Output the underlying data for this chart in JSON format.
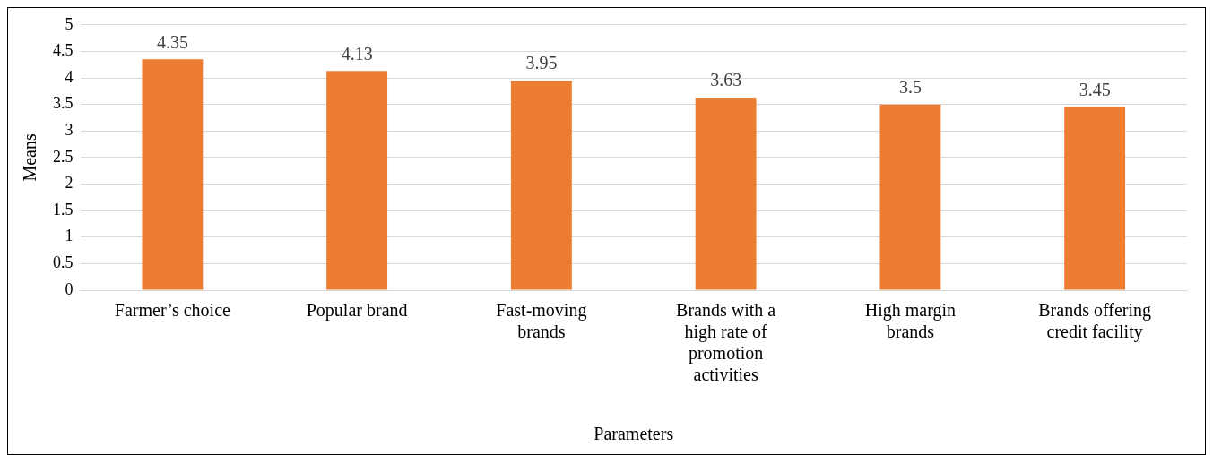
{
  "chart_data": {
    "type": "bar",
    "xlabel": "Parameters",
    "ylabel": "Means",
    "categories": [
      "Farmer’s choice",
      "Popular brand",
      "Fast-moving brands",
      "Brands with a high rate of promotion activities",
      "High margin brands",
      "Brands offering credit facility"
    ],
    "values": [
      4.35,
      4.13,
      3.95,
      3.63,
      3.5,
      3.45
    ],
    "color": "#ed7d31",
    "ylim": [
      0,
      5
    ],
    "yticks": [
      0,
      0.5,
      1,
      1.5,
      2,
      2.5,
      3,
      3.5,
      4,
      4.5,
      5
    ],
    "grid": "y",
    "data_labels": true,
    "legend": false
  }
}
